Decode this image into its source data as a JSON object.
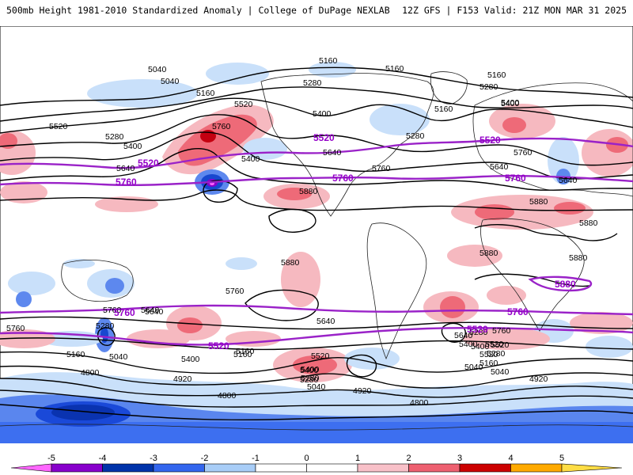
{
  "header": {
    "left": "500mb Height 1981-2010 Standardized Anomaly | College of DuPage NEXLAB",
    "right": "12Z GFS | F153 Valid: 21Z MON MAR 31 2025"
  },
  "colorbar": {
    "ticks": [
      "-5",
      "-4",
      "-3",
      "-2",
      "-1",
      "0",
      "1",
      "2",
      "3",
      "4",
      "5"
    ],
    "colors": [
      "#ff66ff",
      "#8800cc",
      "#0033aa",
      "#3366ee",
      "#a8cdf7",
      "#ffffff",
      "#ffffff",
      "#f8c0c8",
      "#ee6070",
      "#cc0000",
      "#ffaa00",
      "#ffdd44"
    ]
  },
  "contours": {
    "black_labels": [
      "5040",
      "5040",
      "5160",
      "5160",
      "5160",
      "5280",
      "5520",
      "5760",
      "5400",
      "5520",
      "5280",
      "5400",
      "5640",
      "5400",
      "5160",
      "5280",
      "5400",
      "5640",
      "5760",
      "5880",
      "5880",
      "5760",
      "5760",
      "5640",
      "5280",
      "5040",
      "5160",
      "5400",
      "5160",
      "5520",
      "5400",
      "5280",
      "5040",
      "4920",
      "4800",
      "4920",
      "4800",
      "5160",
      "5280",
      "5400",
      "5520",
      "5640",
      "5760",
      "5640",
      "5880",
      "5880",
      "5880",
      "5880",
      "5760",
      "5640",
      "5400",
      "5280",
      "5160",
      "5040",
      "4920",
      "5160",
      "5280",
      "5400",
      "5640",
      "5520",
      "5520",
      "5040",
      "5280",
      "5400",
      "5640",
      "5760",
      "4800"
    ],
    "purple_labels": [
      "5520",
      "5760",
      "5520",
      "5760",
      "5520",
      "5760",
      "5880",
      "5760",
      "5520",
      "5760",
      "5520"
    ]
  }
}
